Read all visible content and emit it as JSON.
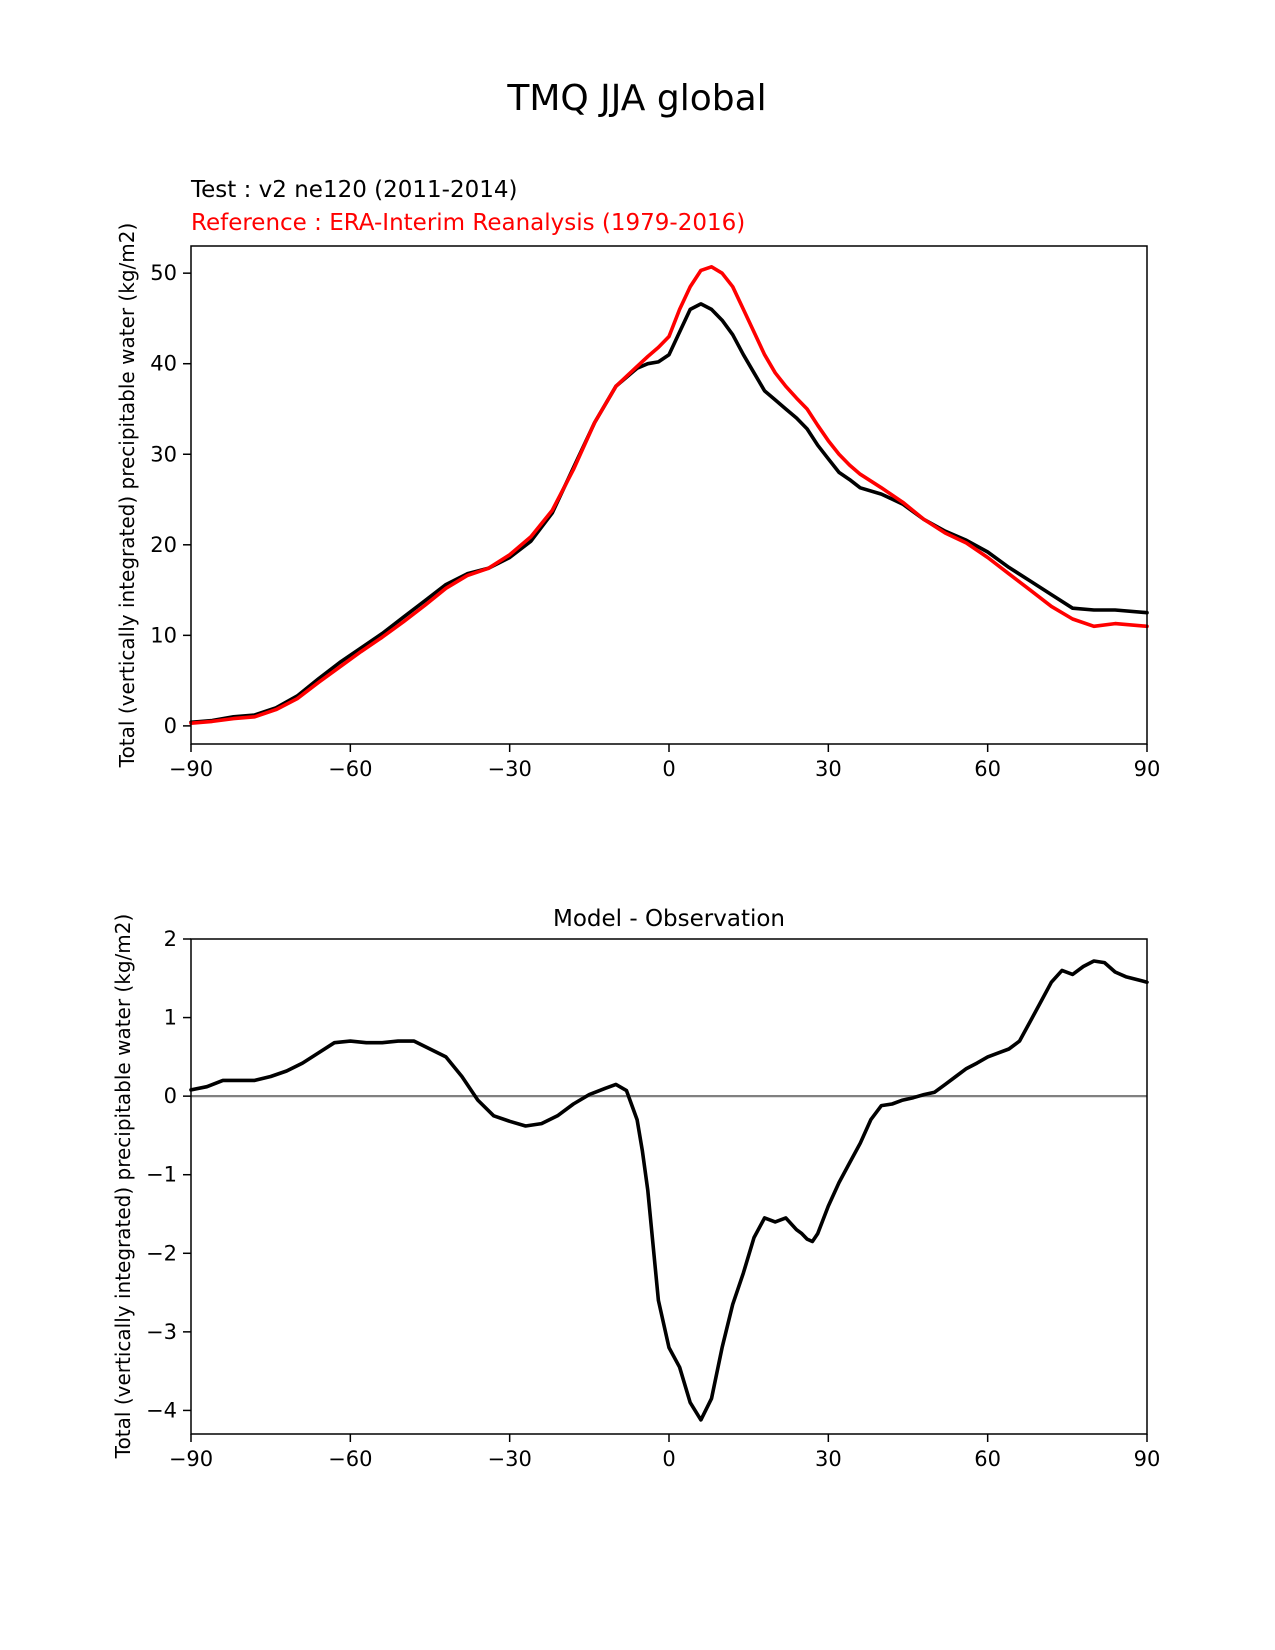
{
  "page_title": "TMQ JJA global",
  "colors": {
    "test": "#000000",
    "reference": "#ff0000",
    "zero_line": "#808080",
    "axis": "#000000"
  },
  "chart_data": [
    {
      "id": "top",
      "type": "line",
      "subtitle_test": "Test : v2 ne120 (2011-2014)",
      "subtitle_reference": "Reference : ERA-Interim Reanalysis (1979-2016)",
      "xlabel": "",
      "ylabel": "Total (vertically integrated) precipitable water (kg/m2)",
      "xlim": [
        -90,
        90
      ],
      "ylim": [
        -2,
        53
      ],
      "xticks": [
        -90,
        -60,
        -30,
        0,
        30,
        60,
        90
      ],
      "xtick_labels": [
        "−90",
        "−60",
        "−30",
        "0",
        "30",
        "60",
        "90"
      ],
      "yticks": [
        0,
        10,
        20,
        30,
        40,
        50
      ],
      "ytick_labels": [
        "0",
        "10",
        "20",
        "30",
        "40",
        "50"
      ],
      "series": [
        {
          "name": "Test",
          "color": "#000000",
          "x": [
            -90,
            -86,
            -82,
            -78,
            -74,
            -70,
            -66,
            -62,
            -58,
            -54,
            -50,
            -46,
            -42,
            -38,
            -34,
            -30,
            -26,
            -22,
            -18,
            -14,
            -10,
            -6,
            -4,
            -2,
            0,
            2,
            4,
            6,
            8,
            10,
            12,
            14,
            16,
            18,
            20,
            22,
            24,
            26,
            28,
            30,
            32,
            34,
            36,
            40,
            44,
            48,
            52,
            56,
            60,
            64,
            68,
            72,
            76,
            80,
            84,
            90
          ],
          "values": [
            0.4,
            0.6,
            1.0,
            1.2,
            2.0,
            3.3,
            5.2,
            7.0,
            8.6,
            10.2,
            12.0,
            13.8,
            15.6,
            16.8,
            17.4,
            18.6,
            20.4,
            23.5,
            28.5,
            33.5,
            37.5,
            39.5,
            40.0,
            40.2,
            41.0,
            43.5,
            46.0,
            46.6,
            46.0,
            44.8,
            43.2,
            41.0,
            39.0,
            37.0,
            36.0,
            35.0,
            34.0,
            32.8,
            31.0,
            29.5,
            28.0,
            27.2,
            26.3,
            25.6,
            24.5,
            22.8,
            21.5,
            20.5,
            19.2,
            17.5,
            16.0,
            14.5,
            13.0,
            12.8,
            12.8,
            12.5
          ]
        },
        {
          "name": "Reference",
          "color": "#ff0000",
          "x": [
            -90,
            -86,
            -82,
            -78,
            -74,
            -70,
            -66,
            -62,
            -58,
            -54,
            -50,
            -46,
            -42,
            -38,
            -34,
            -30,
            -26,
            -22,
            -18,
            -14,
            -10,
            -6,
            -4,
            -2,
            0,
            2,
            4,
            6,
            8,
            10,
            12,
            14,
            16,
            18,
            20,
            22,
            24,
            26,
            28,
            30,
            32,
            34,
            36,
            40,
            44,
            48,
            52,
            56,
            60,
            64,
            68,
            72,
            76,
            80,
            84,
            90
          ],
          "values": [
            0.3,
            0.5,
            0.8,
            1.0,
            1.8,
            3.0,
            4.8,
            6.5,
            8.2,
            9.8,
            11.5,
            13.3,
            15.2,
            16.6,
            17.4,
            18.9,
            20.9,
            23.8,
            28.3,
            33.5,
            37.5,
            39.7,
            40.8,
            41.8,
            43.0,
            46.0,
            48.5,
            50.3,
            50.7,
            50.0,
            48.5,
            46.0,
            43.5,
            41.0,
            39.0,
            37.5,
            36.2,
            35.0,
            33.2,
            31.5,
            30.0,
            28.8,
            27.8,
            26.3,
            24.7,
            22.8,
            21.3,
            20.2,
            18.6,
            16.8,
            15.0,
            13.2,
            11.8,
            11.0,
            11.3,
            11.0
          ]
        }
      ]
    },
    {
      "id": "bottom",
      "type": "line",
      "title": "Model - Observation",
      "xlabel": "",
      "ylabel": "Total (vertically integrated) precipitable water (kg/m2)",
      "xlim": [
        -90,
        90
      ],
      "ylim": [
        -4.3,
        2.0
      ],
      "xticks": [
        -90,
        -60,
        -30,
        0,
        30,
        60,
        90
      ],
      "xtick_labels": [
        "−90",
        "−60",
        "−30",
        "0",
        "30",
        "60",
        "90"
      ],
      "yticks": [
        -4,
        -3,
        -2,
        -1,
        0,
        1,
        2
      ],
      "ytick_labels": [
        "−4",
        "−3",
        "−2",
        "−1",
        "0",
        "1",
        "2"
      ],
      "zero_line": 0,
      "series": [
        {
          "name": "Model - Observation",
          "color": "#000000",
          "x": [
            -90,
            -87,
            -84,
            -81,
            -78,
            -75,
            -72,
            -69,
            -66,
            -63,
            -60,
            -57,
            -54,
            -51,
            -48,
            -45,
            -42,
            -39,
            -36,
            -33,
            -30,
            -27,
            -24,
            -21,
            -18,
            -15,
            -12,
            -10,
            -8,
            -6,
            -5,
            -4,
            -2,
            0,
            2,
            4,
            6,
            8,
            10,
            12,
            14,
            16,
            18,
            20,
            22,
            24,
            25,
            26,
            27,
            28,
            30,
            32,
            34,
            36,
            38,
            40,
            42,
            44,
            46,
            48,
            50,
            52,
            54,
            56,
            58,
            60,
            62,
            64,
            66,
            68,
            70,
            72,
            74,
            76,
            78,
            80,
            82,
            84,
            86,
            90
          ],
          "values": [
            0.08,
            0.12,
            0.2,
            0.2,
            0.2,
            0.25,
            0.32,
            0.42,
            0.55,
            0.68,
            0.7,
            0.68,
            0.68,
            0.7,
            0.7,
            0.6,
            0.5,
            0.25,
            -0.05,
            -0.25,
            -0.32,
            -0.38,
            -0.35,
            -0.25,
            -0.1,
            0.02,
            0.1,
            0.15,
            0.07,
            -0.3,
            -0.7,
            -1.2,
            -2.6,
            -3.2,
            -3.45,
            -3.9,
            -4.12,
            -3.85,
            -3.2,
            -2.65,
            -2.25,
            -1.8,
            -1.55,
            -1.6,
            -1.55,
            -1.7,
            -1.75,
            -1.82,
            -1.85,
            -1.75,
            -1.4,
            -1.1,
            -0.85,
            -0.6,
            -0.3,
            -0.12,
            -0.1,
            -0.05,
            -0.02,
            0.02,
            0.05,
            0.15,
            0.25,
            0.35,
            0.42,
            0.5,
            0.55,
            0.6,
            0.7,
            0.95,
            1.2,
            1.45,
            1.6,
            1.55,
            1.65,
            1.72,
            1.7,
            1.58,
            1.52,
            1.45
          ]
        }
      ]
    }
  ]
}
